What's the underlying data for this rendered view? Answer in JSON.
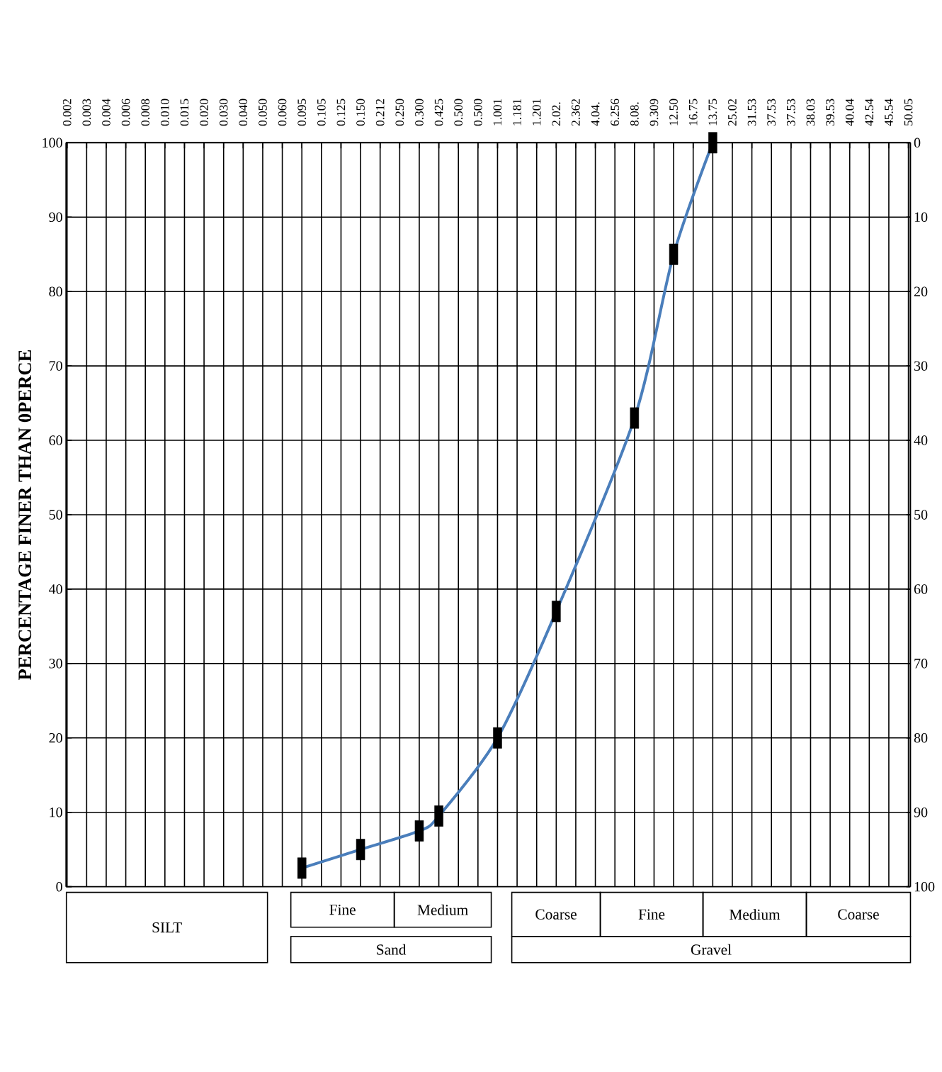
{
  "chart_data": {
    "type": "line",
    "ylabel": "PERCENTAGE FINER THAN 0PERCE",
    "categories": [
      "0.002",
      "0.003",
      "0.004",
      "0.006",
      "0.008",
      "0.010",
      "0.015",
      "0.020",
      "0.030",
      "0.040",
      "0.050",
      "0.060",
      "0.095",
      "0.105",
      "0.125",
      "0.150",
      "0.212",
      "0.250",
      "0.300",
      "0.425",
      "0.500",
      "0.500",
      "1.001",
      "1.181",
      "1.201",
      "2.02.",
      "2.362",
      "4.04.",
      "6.256",
      "8.08.",
      "9.309",
      "12.50",
      "16.75",
      "13.75",
      "25.02",
      "31.53",
      "37.53",
      "37.53",
      "38.03",
      "39.53",
      "40.04",
      "42.54",
      "45.54",
      "50.05"
    ],
    "series": [
      {
        "color": "#4a7ebb",
        "values": [
          null,
          null,
          null,
          null,
          null,
          null,
          null,
          null,
          null,
          null,
          null,
          null,
          2.5,
          null,
          null,
          5,
          null,
          null,
          7.5,
          9.5,
          null,
          null,
          20,
          null,
          null,
          37,
          null,
          null,
          null,
          63,
          null,
          85,
          null,
          100,
          null,
          null,
          null,
          null,
          null,
          null,
          null,
          null,
          null,
          null
        ]
      }
    ],
    "ylim": [
      0,
      100
    ],
    "yticks": [
      0,
      10,
      20,
      30,
      40,
      50,
      60,
      70,
      80,
      90,
      100
    ],
    "y2lim": [
      100,
      0
    ],
    "y2ticks": [
      0,
      10,
      20,
      30,
      40,
      50,
      60,
      70,
      80,
      90,
      100
    ],
    "grid": true,
    "marker": "square",
    "line_style": "solid",
    "annotations": [
      "SILT",
      "Fine",
      "Medium",
      "Coarse",
      "Fine",
      "Medium",
      "Coarse",
      "Sand",
      "Gravel"
    ]
  }
}
